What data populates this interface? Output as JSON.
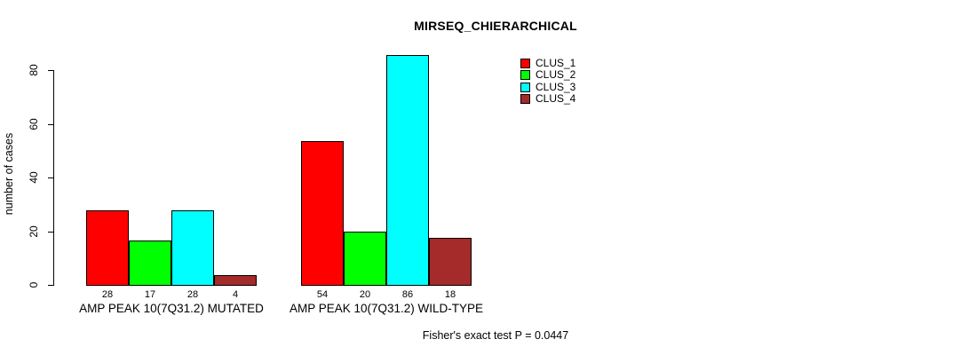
{
  "chart_data": {
    "type": "bar",
    "title": "MIRSEQ_CHIERARCHICAL",
    "ylabel": "number of cases",
    "xlabel": "",
    "ylim": [
      0,
      86
    ],
    "yticks": [
      0,
      20,
      40,
      60,
      80
    ],
    "grid": false,
    "legend_position": "top-right",
    "bar_value_labels": true,
    "categories": [
      "AMP PEAK 10(7Q31.2) MUTATED",
      "AMP PEAK 10(7Q31.2) WILD-TYPE"
    ],
    "series": [
      {
        "name": "CLUS_1",
        "color": "#FF0000",
        "values": [
          28,
          54
        ]
      },
      {
        "name": "CLUS_2",
        "color": "#00FF00",
        "values": [
          17,
          20
        ]
      },
      {
        "name": "CLUS_3",
        "color": "#00FFFF",
        "values": [
          28,
          86
        ]
      },
      {
        "name": "CLUS_4",
        "color": "#A52A2A",
        "values": [
          4,
          18
        ]
      }
    ],
    "annotation": "Fisher's exact test P = 0.0447"
  },
  "colors": {
    "background": "#FFFFFF",
    "axis": "#000000",
    "text": "#000000"
  }
}
